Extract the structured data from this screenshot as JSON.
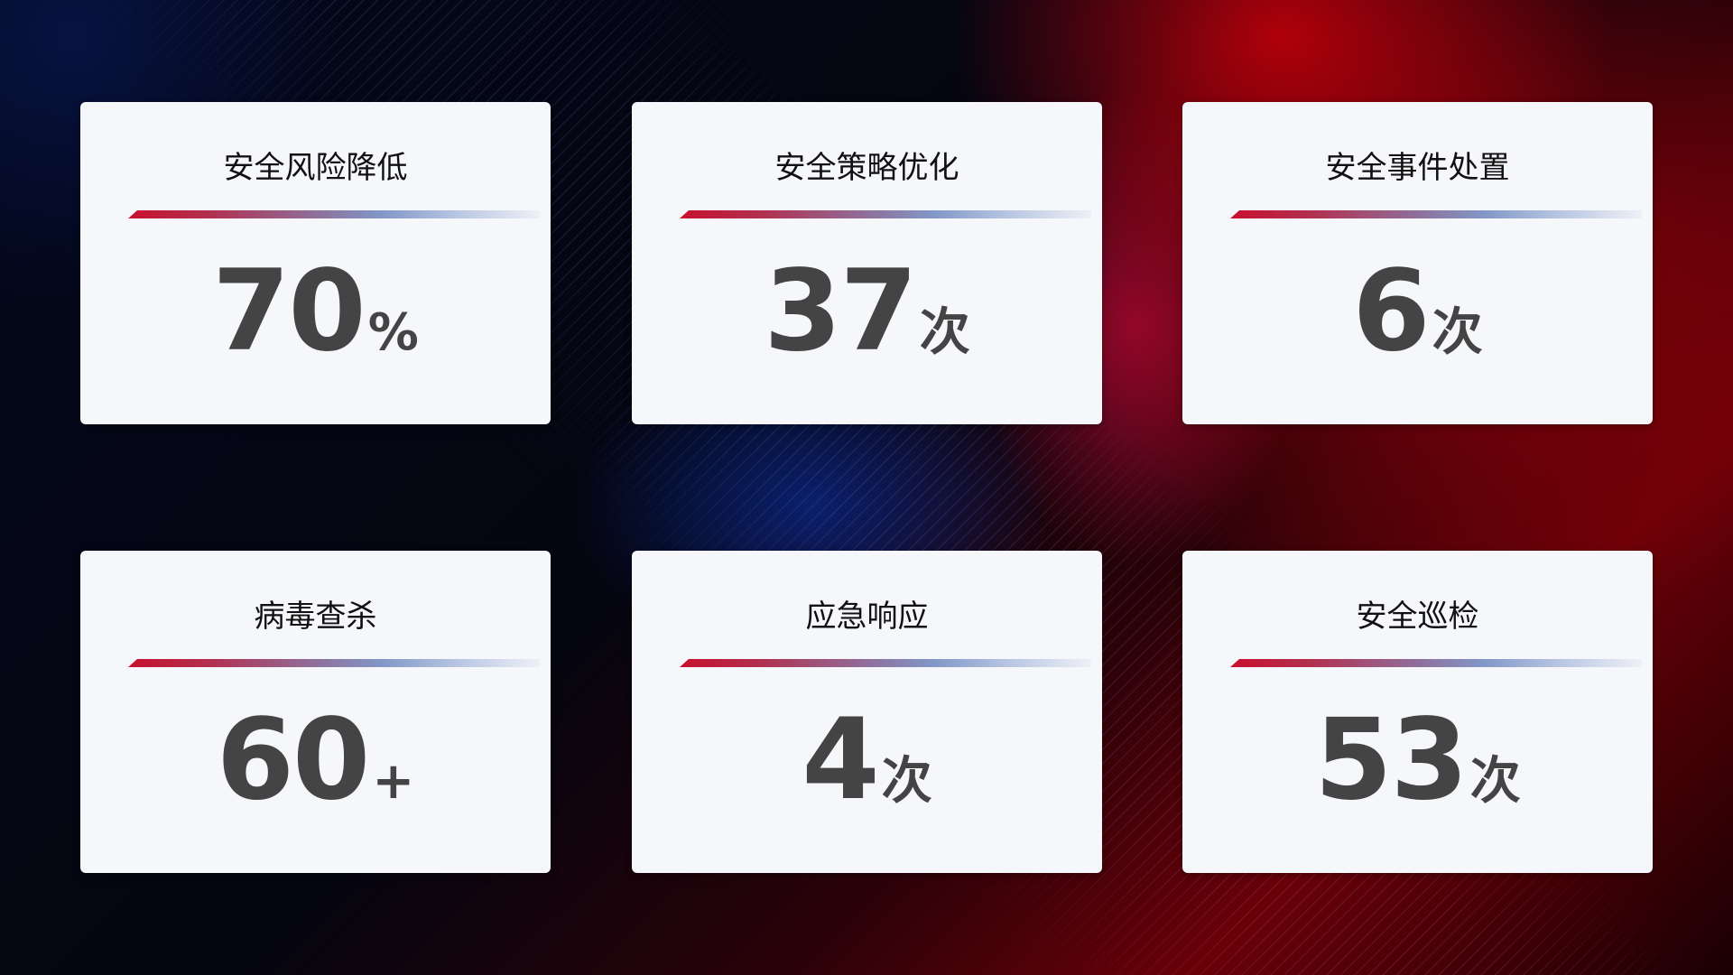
{
  "colors": {
    "accent_red": "#c8102e",
    "accent_blue": "#8298c8",
    "card_bg": "#f6f7fb",
    "value_color": "#444444"
  },
  "cards": [
    {
      "title": "安全风险降低",
      "value": "70",
      "unit": "%"
    },
    {
      "title": "安全策略优化",
      "value": "37",
      "unit": "次"
    },
    {
      "title": "安全事件处置",
      "value": "6",
      "unit": "次"
    },
    {
      "title": "病毒查杀",
      "value": "60",
      "unit": "+"
    },
    {
      "title": "应急响应",
      "value": "4",
      "unit": "次"
    },
    {
      "title": "安全巡检",
      "value": "53",
      "unit": "次"
    }
  ]
}
